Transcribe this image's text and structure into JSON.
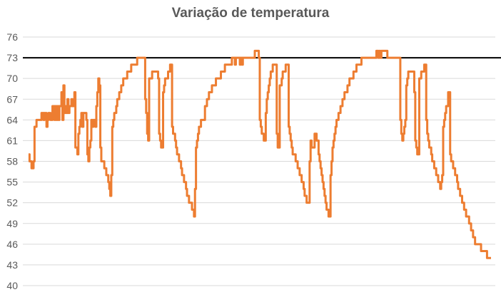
{
  "chart_data": {
    "type": "line",
    "title": "Variação de temperatura",
    "xlabel": "",
    "ylabel": "",
    "ylim": [
      40,
      76
    ],
    "yticks": [
      40,
      43,
      46,
      49,
      52,
      55,
      58,
      61,
      64,
      67,
      70,
      73,
      76
    ],
    "grid": "horizontal",
    "legend": "none",
    "reference_line": {
      "value": 73,
      "color": "#000000"
    },
    "colors": {
      "series": "#ED7D31",
      "grid": "#D9D9D9",
      "text": "#595959"
    },
    "series": [
      {
        "values": [
          59,
          58,
          58,
          57,
          57,
          58,
          63,
          63,
          64,
          64,
          64,
          64,
          64,
          65,
          65,
          64,
          65,
          65,
          63,
          64,
          65,
          65,
          64,
          64,
          66,
          66,
          64,
          66,
          64,
          66,
          64,
          66,
          66,
          68,
          64,
          69,
          65,
          66,
          65,
          67,
          65,
          66,
          66,
          67,
          66,
          66,
          68,
          60,
          60,
          59,
          62,
          63,
          64,
          65,
          63,
          65,
          65,
          65,
          64,
          59,
          58,
          60,
          61,
          64,
          63,
          64,
          64,
          63,
          66,
          68,
          70,
          69,
          60,
          58,
          58,
          58,
          57,
          57,
          56,
          56,
          55,
          54,
          53,
          56,
          63,
          64,
          65,
          65,
          66,
          67,
          67,
          68,
          68,
          69,
          69,
          70,
          70,
          70,
          70,
          71,
          71,
          71,
          71,
          72,
          72,
          72,
          72,
          72,
          72,
          73,
          73,
          73,
          73,
          73,
          73,
          73,
          73,
          67,
          65,
          62,
          61,
          70,
          70,
          70,
          71,
          71,
          71,
          71,
          71,
          71,
          70,
          62,
          61,
          60,
          60,
          68,
          69,
          70,
          70,
          70,
          71,
          71,
          72,
          72,
          63,
          62,
          62,
          61,
          60,
          59,
          59,
          58,
          58,
          57,
          56,
          56,
          55,
          55,
          54,
          53,
          53,
          52,
          52,
          52,
          51,
          51,
          50,
          54,
          60,
          61,
          62,
          63,
          63,
          64,
          64,
          64,
          64,
          66,
          66,
          67,
          67,
          68,
          68,
          68,
          69,
          69,
          69,
          69,
          70,
          70,
          70,
          70,
          70,
          71,
          71,
          71,
          71,
          72,
          72,
          72,
          72,
          72,
          72,
          72,
          73,
          73,
          73,
          72,
          73,
          73,
          73,
          73,
          72,
          73,
          72,
          73,
          73,
          73,
          73,
          73,
          73,
          73,
          73,
          73,
          73,
          73,
          73,
          74,
          74,
          74,
          74,
          73,
          64,
          63,
          62,
          62,
          61,
          61,
          65,
          67,
          68,
          69,
          70,
          71,
          71,
          72,
          72,
          72,
          72,
          62,
          60,
          60,
          69,
          69,
          70,
          71,
          71,
          71,
          72,
          72,
          72,
          63,
          62,
          61,
          60,
          59,
          59,
          59,
          58,
          58,
          57,
          57,
          56,
          56,
          55,
          55,
          54,
          53,
          53,
          52,
          52,
          52,
          58,
          61,
          60,
          60,
          60,
          62,
          62,
          61,
          61,
          59,
          58,
          57,
          56,
          55,
          54,
          53,
          52,
          51,
          51,
          50,
          50,
          56,
          58,
          60,
          61,
          62,
          63,
          64,
          64,
          65,
          65,
          66,
          66,
          67,
          67,
          68,
          68,
          68,
          69,
          69,
          70,
          70,
          70,
          70,
          71,
          71,
          71,
          72,
          72,
          72,
          72,
          72,
          73,
          73,
          73,
          73,
          73,
          73,
          73,
          73,
          73,
          73,
          73,
          73,
          73,
          73,
          73,
          74,
          74,
          73,
          74,
          73,
          74,
          74,
          74,
          74,
          74,
          74,
          73,
          73,
          73,
          73,
          73,
          73,
          73,
          73,
          73,
          73,
          73,
          73,
          73,
          64,
          62,
          61,
          62,
          63,
          64,
          69,
          70,
          71,
          71,
          71,
          71,
          71,
          71,
          68,
          61,
          60,
          59,
          59,
          70,
          70,
          71,
          71,
          71,
          72,
          72,
          64,
          62,
          61,
          60,
          60,
          59,
          58,
          58,
          57,
          57,
          56,
          56,
          55,
          55,
          54,
          55,
          56,
          63,
          64,
          65,
          66,
          66,
          68,
          68,
          59,
          58,
          58,
          57,
          57,
          56,
          56,
          55,
          54,
          54,
          53,
          53,
          52,
          52,
          51,
          51,
          50,
          50,
          50,
          49,
          49,
          48,
          48,
          47,
          47,
          46,
          46,
          46,
          46,
          46,
          46,
          45,
          45,
          45,
          45,
          45,
          45,
          44,
          44,
          44,
          44,
          44
        ]
      }
    ]
  }
}
